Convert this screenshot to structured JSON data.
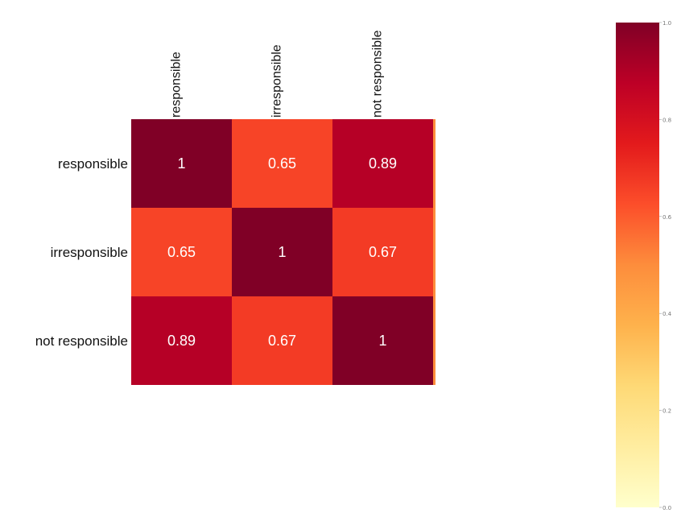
{
  "chart_data": {
    "type": "heatmap",
    "rows": [
      "responsible",
      "irresponsible",
      "not responsible"
    ],
    "columns": [
      "responsible",
      "irresponsible",
      "not responsible"
    ],
    "values": [
      [
        1,
        0.65,
        0.89
      ],
      [
        0.65,
        1,
        0.67
      ],
      [
        0.89,
        0.67,
        1
      ]
    ],
    "cell_labels": [
      [
        "1",
        "0.65",
        "0.89"
      ],
      [
        "0.65",
        "1",
        "0.67"
      ],
      [
        "0.89",
        "0.67",
        "1"
      ]
    ],
    "colormap": "YlOrRd",
    "colorbar": {
      "range": [
        0.0,
        1.0
      ],
      "ticks": [
        "0.0",
        "0.2",
        "0.4",
        "0.6",
        "0.8",
        "1.0"
      ]
    }
  },
  "colors": {
    "annotation_text": "#ffffff",
    "label_text": "#111111",
    "colormap_stops": [
      "#ffffcc",
      "#ffeda0",
      "#fed976",
      "#feb24c",
      "#fd8d3c",
      "#fc4e2a",
      "#e31a1c",
      "#bd0026",
      "#800026"
    ]
  }
}
